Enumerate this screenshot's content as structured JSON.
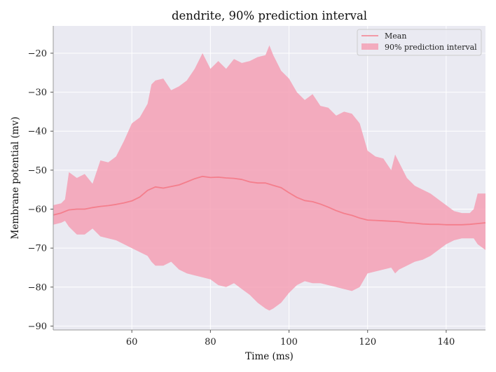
{
  "chart_data": {
    "type": "area",
    "title": "dendrite, 90% prediction interval",
    "xlabel": "Time (ms)",
    "ylabel": "Membrane potential (mv)",
    "xlim": [
      40,
      150
    ],
    "ylim": [
      -91,
      -13
    ],
    "xticks": [
      60,
      80,
      100,
      120,
      140
    ],
    "yticks": [
      -90,
      -80,
      -70,
      -60,
      -50,
      -40,
      -30,
      -20
    ],
    "xtick_labels": [
      "60",
      "80",
      "100",
      "120",
      "140"
    ],
    "ytick_labels": [
      "−90",
      "−80",
      "−70",
      "−60",
      "−50",
      "−40",
      "−30",
      "−20"
    ],
    "grid": true,
    "legend_position": "top-right",
    "colors": {
      "mean": "#f47e8c",
      "band": "#f4a0b5",
      "background": "#eaeaf2"
    },
    "series": [
      {
        "name": "Mean",
        "kind": "line",
        "x": [
          40,
          42,
          44,
          46,
          48,
          50,
          52,
          54,
          56,
          58,
          60,
          62,
          64,
          66,
          68,
          70,
          72,
          74,
          76,
          78,
          80,
          82,
          84,
          86,
          88,
          90,
          92,
          94,
          96,
          98,
          100,
          102,
          104,
          106,
          108,
          110,
          112,
          114,
          116,
          118,
          120,
          122,
          124,
          126,
          128,
          130,
          132,
          134,
          136,
          138,
          140,
          142,
          144,
          146,
          148,
          150
        ],
        "y": [
          -61.5,
          -61,
          -60.2,
          -60,
          -60,
          -59.6,
          -59.3,
          -59.1,
          -58.8,
          -58.4,
          -57.9,
          -56.9,
          -55.2,
          -54.3,
          -54.6,
          -54.2,
          -53.8,
          -53,
          -52.2,
          -51.6,
          -51.9,
          -51.8,
          -52,
          -52.1,
          -52.4,
          -53,
          -53.3,
          -53.3,
          -53.9,
          -54.5,
          -55.8,
          -57,
          -57.8,
          -58.1,
          -58.7,
          -59.5,
          -60.4,
          -61.1,
          -61.6,
          -62.3,
          -62.8,
          -62.9,
          -63,
          -63.1,
          -63.2,
          -63.5,
          -63.6,
          -63.8,
          -63.9,
          -63.9,
          -64,
          -64,
          -64,
          -63.9,
          -63.7,
          -63.5
        ]
      },
      {
        "name": "90% prediction interval",
        "kind": "band",
        "x": [
          40,
          42,
          43,
          44,
          46,
          48,
          50,
          52,
          54,
          56,
          58,
          60,
          62,
          64,
          65,
          66,
          68,
          70,
          72,
          74,
          76,
          78,
          80,
          82,
          84,
          86,
          88,
          90,
          92,
          94,
          95,
          96,
          98,
          100,
          102,
          104,
          106,
          108,
          110,
          112,
          114,
          116,
          118,
          120,
          122,
          124,
          126,
          127,
          128,
          130,
          132,
          134,
          136,
          138,
          140,
          142,
          144,
          146,
          147,
          148,
          150
        ],
        "upper": [
          -59,
          -58.5,
          -57.5,
          -50.5,
          -52,
          -51,
          -53.5,
          -47.5,
          -48,
          -46.5,
          -42.5,
          -38,
          -36.5,
          -33,
          -28,
          -27,
          -26.5,
          -29.5,
          -28.5,
          -27,
          -24,
          -20,
          -24,
          -22,
          -24,
          -21.5,
          -22.5,
          -22,
          -21,
          -20.5,
          -18,
          -20.5,
          -24.5,
          -26.5,
          -30,
          -32,
          -30.5,
          -33.5,
          -34,
          -36,
          -35,
          -35.5,
          -38,
          -45,
          -46.5,
          -47,
          -50,
          -46,
          -48,
          -52,
          -54,
          -55,
          -56,
          -57.5,
          -59,
          -60.5,
          -61,
          -61,
          -60,
          -56,
          -56
        ],
        "lower": [
          -64,
          -63.5,
          -63,
          -64.5,
          -66.5,
          -66.5,
          -65,
          -67,
          -67.5,
          -68,
          -69,
          -70,
          -71,
          -72,
          -73.5,
          -74.5,
          -74.5,
          -73.5,
          -75.5,
          -76.5,
          -77,
          -77.5,
          -78,
          -79.5,
          -80,
          -79,
          -80.5,
          -82,
          -84,
          -85.5,
          -86,
          -85.5,
          -84,
          -81.5,
          -79.5,
          -78.5,
          -79,
          -79,
          -79.5,
          -80,
          -80.5,
          -81,
          -80,
          -76.5,
          -76,
          -75.5,
          -75,
          -76.5,
          -75.5,
          -74.5,
          -73.5,
          -73,
          -72,
          -70.5,
          -69,
          -68,
          -67.5,
          -67.5,
          -67.5,
          -69,
          -70.5
        ]
      }
    ]
  }
}
